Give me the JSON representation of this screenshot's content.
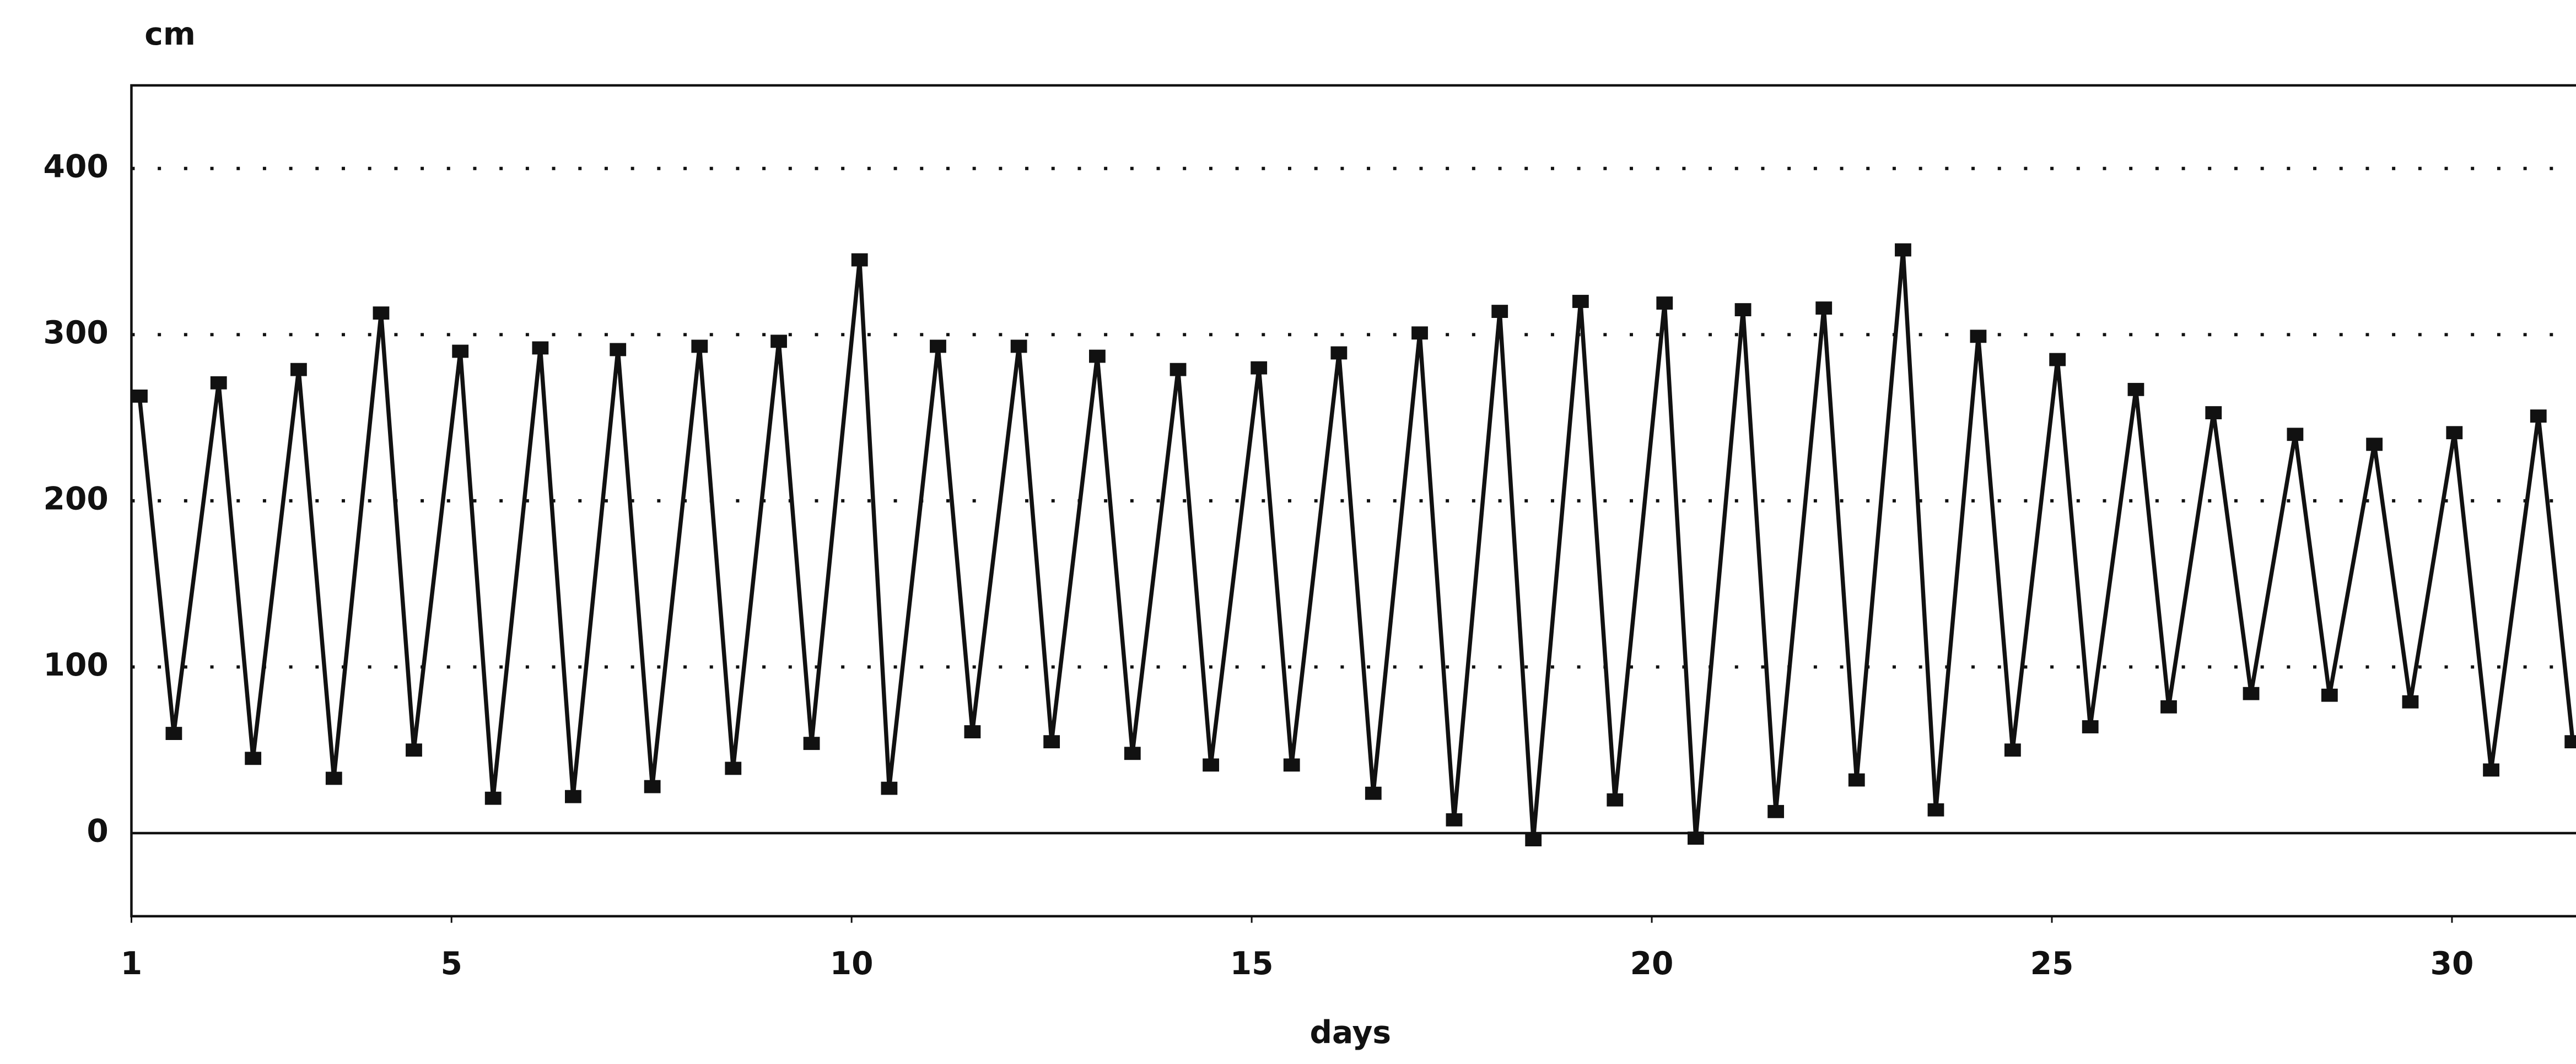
{
  "chart_data": {
    "type": "line",
    "y_label": "cm",
    "x_label": "days",
    "xlim": [
      1,
      31.55
    ],
    "ylim": [
      -50,
      450
    ],
    "xticks": [
      1,
      5,
      10,
      15,
      20,
      25,
      30
    ],
    "yticks": [
      0,
      100,
      200,
      300,
      400
    ],
    "grid": true,
    "series": [
      {
        "color": "#111111",
        "x": [
          1.1,
          1.53,
          2.09,
          2.52,
          3.09,
          3.53,
          4.12,
          4.53,
          5.11,
          5.52,
          6.11,
          6.52,
          7.08,
          7.51,
          8.1,
          8.52,
          9.09,
          9.5,
          10.1,
          10.47,
          11.08,
          11.51,
          12.09,
          12.5,
          13.07,
          13.51,
          14.08,
          14.49,
          15.09,
          15.5,
          16.09,
          16.52,
          17.1,
          17.53,
          18.1,
          18.52,
          19.11,
          19.54,
          20.16,
          20.55,
          21.14,
          21.55,
          22.15,
          22.56,
          23.14,
          23.55,
          24.08,
          24.51,
          25.07,
          25.48,
          26.05,
          26.46,
          27.02,
          27.49,
          28.04,
          28.47,
          29.03,
          29.48,
          30.03,
          30.49,
          31.08,
          31.51
        ],
        "values": [
          263,
          60,
          271,
          45,
          279,
          33,
          313,
          50,
          290,
          21,
          292,
          22,
          291,
          28,
          293,
          39,
          296,
          54,
          345,
          27,
          293,
          61,
          293,
          55,
          287,
          48,
          279,
          41,
          280,
          41,
          289,
          24,
          301,
          8,
          314,
          -4,
          320,
          20,
          319,
          -3,
          315,
          13,
          316,
          32,
          351,
          14,
          299,
          50,
          285,
          64,
          267,
          76,
          253,
          84,
          240,
          83,
          234,
          79,
          241,
          38,
          251,
          55
        ]
      }
    ]
  }
}
